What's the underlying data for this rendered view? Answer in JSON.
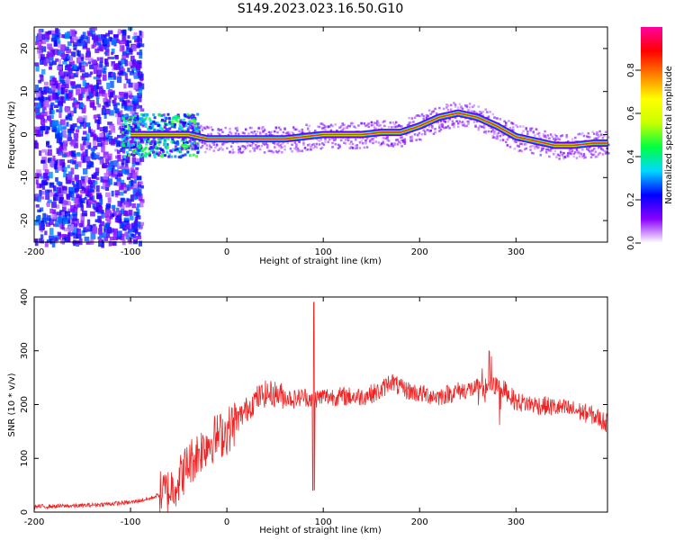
{
  "title": "S149.2023.023.16.50.G10",
  "chart_data": [
    {
      "type": "heatmap",
      "xlabel": "Height of straight line (km)",
      "ylabel": "Frequency (Hz)",
      "xlim": [
        -200,
        395
      ],
      "ylim": [
        -25,
        25
      ],
      "xticks": [
        -200,
        -100,
        0,
        100,
        200,
        300
      ],
      "yticks": [
        -20,
        -10,
        0,
        10,
        20
      ],
      "colorbar": {
        "label": "Normalized spectral amplitude",
        "range": [
          0,
          1
        ],
        "ticks": [
          0.0,
          0.2,
          0.4,
          0.6,
          0.8
        ],
        "colormap": [
          "#ffffff",
          "#8a00ff",
          "#0000ff",
          "#00d8ff",
          "#00ff40",
          "#c8ff00",
          "#ffff00",
          "#ff8000",
          "#ff0000",
          "#ff00a0"
        ]
      },
      "ridge": {
        "x": [
          -100,
          -80,
          -60,
          -40,
          -20,
          0,
          20,
          40,
          60,
          80,
          100,
          120,
          140,
          160,
          180,
          200,
          220,
          240,
          260,
          280,
          300,
          320,
          340,
          360,
          380,
          395
        ],
        "frequency_hz": [
          0,
          0,
          0,
          0,
          -1,
          -1,
          -1,
          -1,
          -1,
          -0.5,
          0,
          0,
          0,
          0.5,
          0.5,
          2,
          4,
          5,
          4,
          2,
          -0.5,
          -1.5,
          -2.5,
          -2.5,
          -2,
          -2
        ]
      }
    },
    {
      "type": "line",
      "xlabel": "Height of straight line (km)",
      "ylabel": "SNR (10 * v/v)",
      "xlim": [
        -200,
        395
      ],
      "ylim": [
        0,
        400
      ],
      "xticks": [
        -200,
        -100,
        0,
        100,
        200,
        300
      ],
      "yticks": [
        0,
        100,
        200,
        300,
        400
      ],
      "color": "#ee2222",
      "series": [
        {
          "x": [
            -200,
            -150,
            -100,
            -80,
            -60,
            -50,
            -40,
            -30,
            -20,
            -10,
            0,
            10,
            20,
            30,
            40,
            50,
            60,
            70,
            80,
            90,
            100,
            120,
            140,
            160,
            170,
            180,
            200,
            220,
            240,
            260,
            280,
            290,
            300,
            320,
            340,
            360,
            380,
            395
          ],
          "values": [
            10,
            12,
            18,
            25,
            40,
            60,
            90,
            110,
            130,
            140,
            150,
            170,
            190,
            210,
            220,
            220,
            215,
            210,
            215,
            210,
            215,
            215,
            215,
            225,
            245,
            230,
            220,
            215,
            225,
            230,
            235,
            225,
            205,
            200,
            195,
            190,
            180,
            165
          ]
        }
      ]
    }
  ]
}
